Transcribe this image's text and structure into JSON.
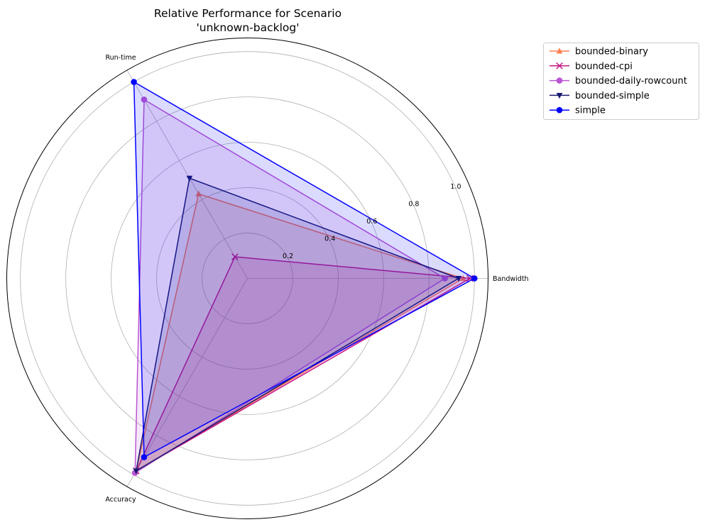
{
  "chart_data": {
    "type": "radar",
    "title": [
      "Relative Performance for Scenario",
      "'unknown-backlog'"
    ],
    "axes": [
      "Bandwidth",
      "Run-time",
      "Accuracy"
    ],
    "r_ticks": [
      "0.2",
      "0.4",
      "0.6",
      "0.8",
      "1.0"
    ],
    "r_tick_values": [
      0.2,
      0.4,
      0.6,
      0.8,
      1.0
    ],
    "rlim": [
      0,
      1.06
    ],
    "grid": true,
    "legend_position": "upper-right-outside",
    "fill": true,
    "series": [
      {
        "name": "bounded-binary",
        "values": [
          0.95,
          0.43,
          0.98
        ],
        "color": "#ff7f50",
        "marker": "triangle-up"
      },
      {
        "name": "bounded-cpi",
        "values": [
          0.98,
          0.11,
          0.98
        ],
        "color": "#c71585",
        "marker": "x"
      },
      {
        "name": "bounded-daily-rowcount",
        "values": [
          0.87,
          0.91,
          0.99
        ],
        "color": "#ba55d3",
        "marker": "circle"
      },
      {
        "name": "bounded-simple",
        "values": [
          0.93,
          0.51,
          0.98
        ],
        "color": "#191970",
        "marker": "triangle-down"
      },
      {
        "name": "simple",
        "values": [
          1.0,
          1.0,
          0.91
        ],
        "color": "#0000ff",
        "marker": "circle"
      }
    ]
  }
}
